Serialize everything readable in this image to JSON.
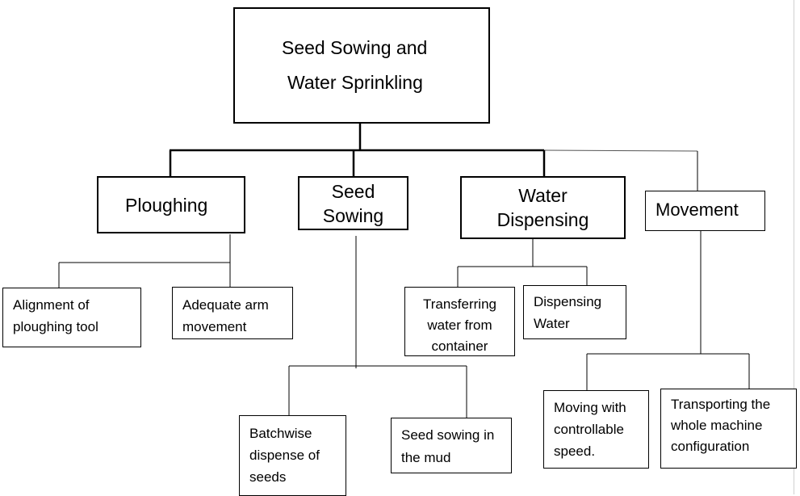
{
  "root": {
    "line1": "Seed Sowing and",
    "line2": "Water Sprinkling"
  },
  "categories": {
    "ploughing": "Ploughing",
    "seed_sowing": "Seed\nSowing",
    "water_dispensing": "Water\nDispensing",
    "movement": "Movement"
  },
  "leaves": {
    "alignment": "Alignment of\nploughing tool",
    "adequate_arm": "Adequate   arm\nmovement",
    "transferring": "Transferring\nwater from\ncontainer",
    "dispensing_water": "Dispensing\nWater",
    "batchwise": "Batchwise\ndispense of\nseeds",
    "seed_mud": "Seed sowing in\nthe mud",
    "moving_speed": "Moving with\ncontrollable\nspeed.",
    "transporting": "Transporting the\nwhole machine\nconfiguration"
  }
}
